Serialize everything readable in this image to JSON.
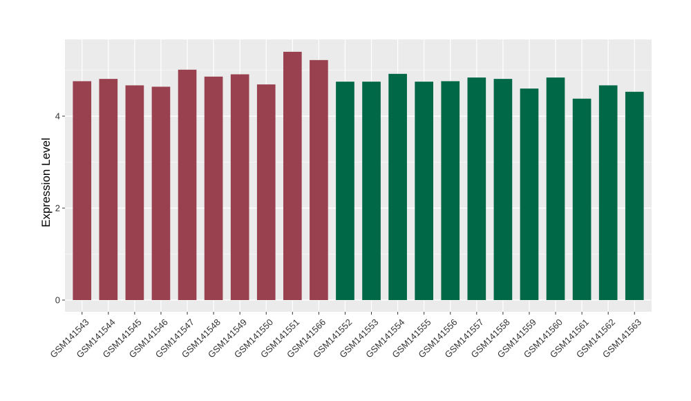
{
  "chart_data": {
    "type": "bar",
    "title": "",
    "xlabel": "",
    "ylabel": "Expression Level",
    "ylim": [
      -0.25,
      5.7
    ],
    "yticks": [
      0,
      2,
      4
    ],
    "grid": true,
    "legend": "none",
    "categories": [
      "GSM141543",
      "GSM141544",
      "GSM141545",
      "GSM141546",
      "GSM141547",
      "GSM141548",
      "GSM141549",
      "GSM141550",
      "GSM141551",
      "GSM141566",
      "GSM141552",
      "GSM141553",
      "GSM141554",
      "GSM141555",
      "GSM141556",
      "GSM141557",
      "GSM141558",
      "GSM141559",
      "GSM141560",
      "GSM141561",
      "GSM141562",
      "GSM141563"
    ],
    "values": [
      4.76,
      4.81,
      4.67,
      4.64,
      5.01,
      4.86,
      4.91,
      4.69,
      5.4,
      5.22,
      4.75,
      4.75,
      4.92,
      4.75,
      4.76,
      4.84,
      4.81,
      4.6,
      4.84,
      4.38,
      4.67,
      4.53
    ],
    "groups": [
      "group1",
      "group1",
      "group1",
      "group1",
      "group1",
      "group1",
      "group1",
      "group1",
      "group1",
      "group1",
      "group2",
      "group2",
      "group2",
      "group2",
      "group2",
      "group2",
      "group2",
      "group2",
      "group2",
      "group2",
      "group2",
      "group2"
    ],
    "colors": {
      "group1": "#9a4150",
      "group2": "#006747",
      "panel": "#ebebeb",
      "grid": "#ffffff"
    }
  }
}
